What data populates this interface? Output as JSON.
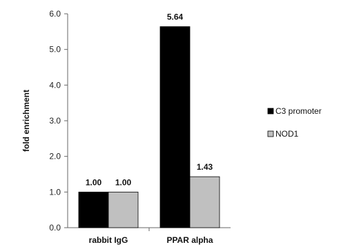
{
  "chart_data": {
    "type": "bar",
    "categories": [
      "rabbit IgG",
      "PPAR alpha"
    ],
    "series": [
      {
        "name": "C3 promoter",
        "values": [
          1.0,
          5.64
        ],
        "color": "#000000"
      },
      {
        "name": "NOD1",
        "values": [
          1.0,
          1.43
        ],
        "color": "#c0c0c0"
      }
    ],
    "data_labels": [
      [
        "1.00",
        "5.64"
      ],
      [
        "1.00",
        "1.43"
      ]
    ],
    "ylabel": "fold enrichment",
    "ylim": [
      0,
      6.0
    ],
    "yticks": [
      "0.0",
      "1.0",
      "2.0",
      "3.0",
      "4.0",
      "5.0",
      "6.0"
    ],
    "grid": false,
    "legend_position": "right"
  }
}
